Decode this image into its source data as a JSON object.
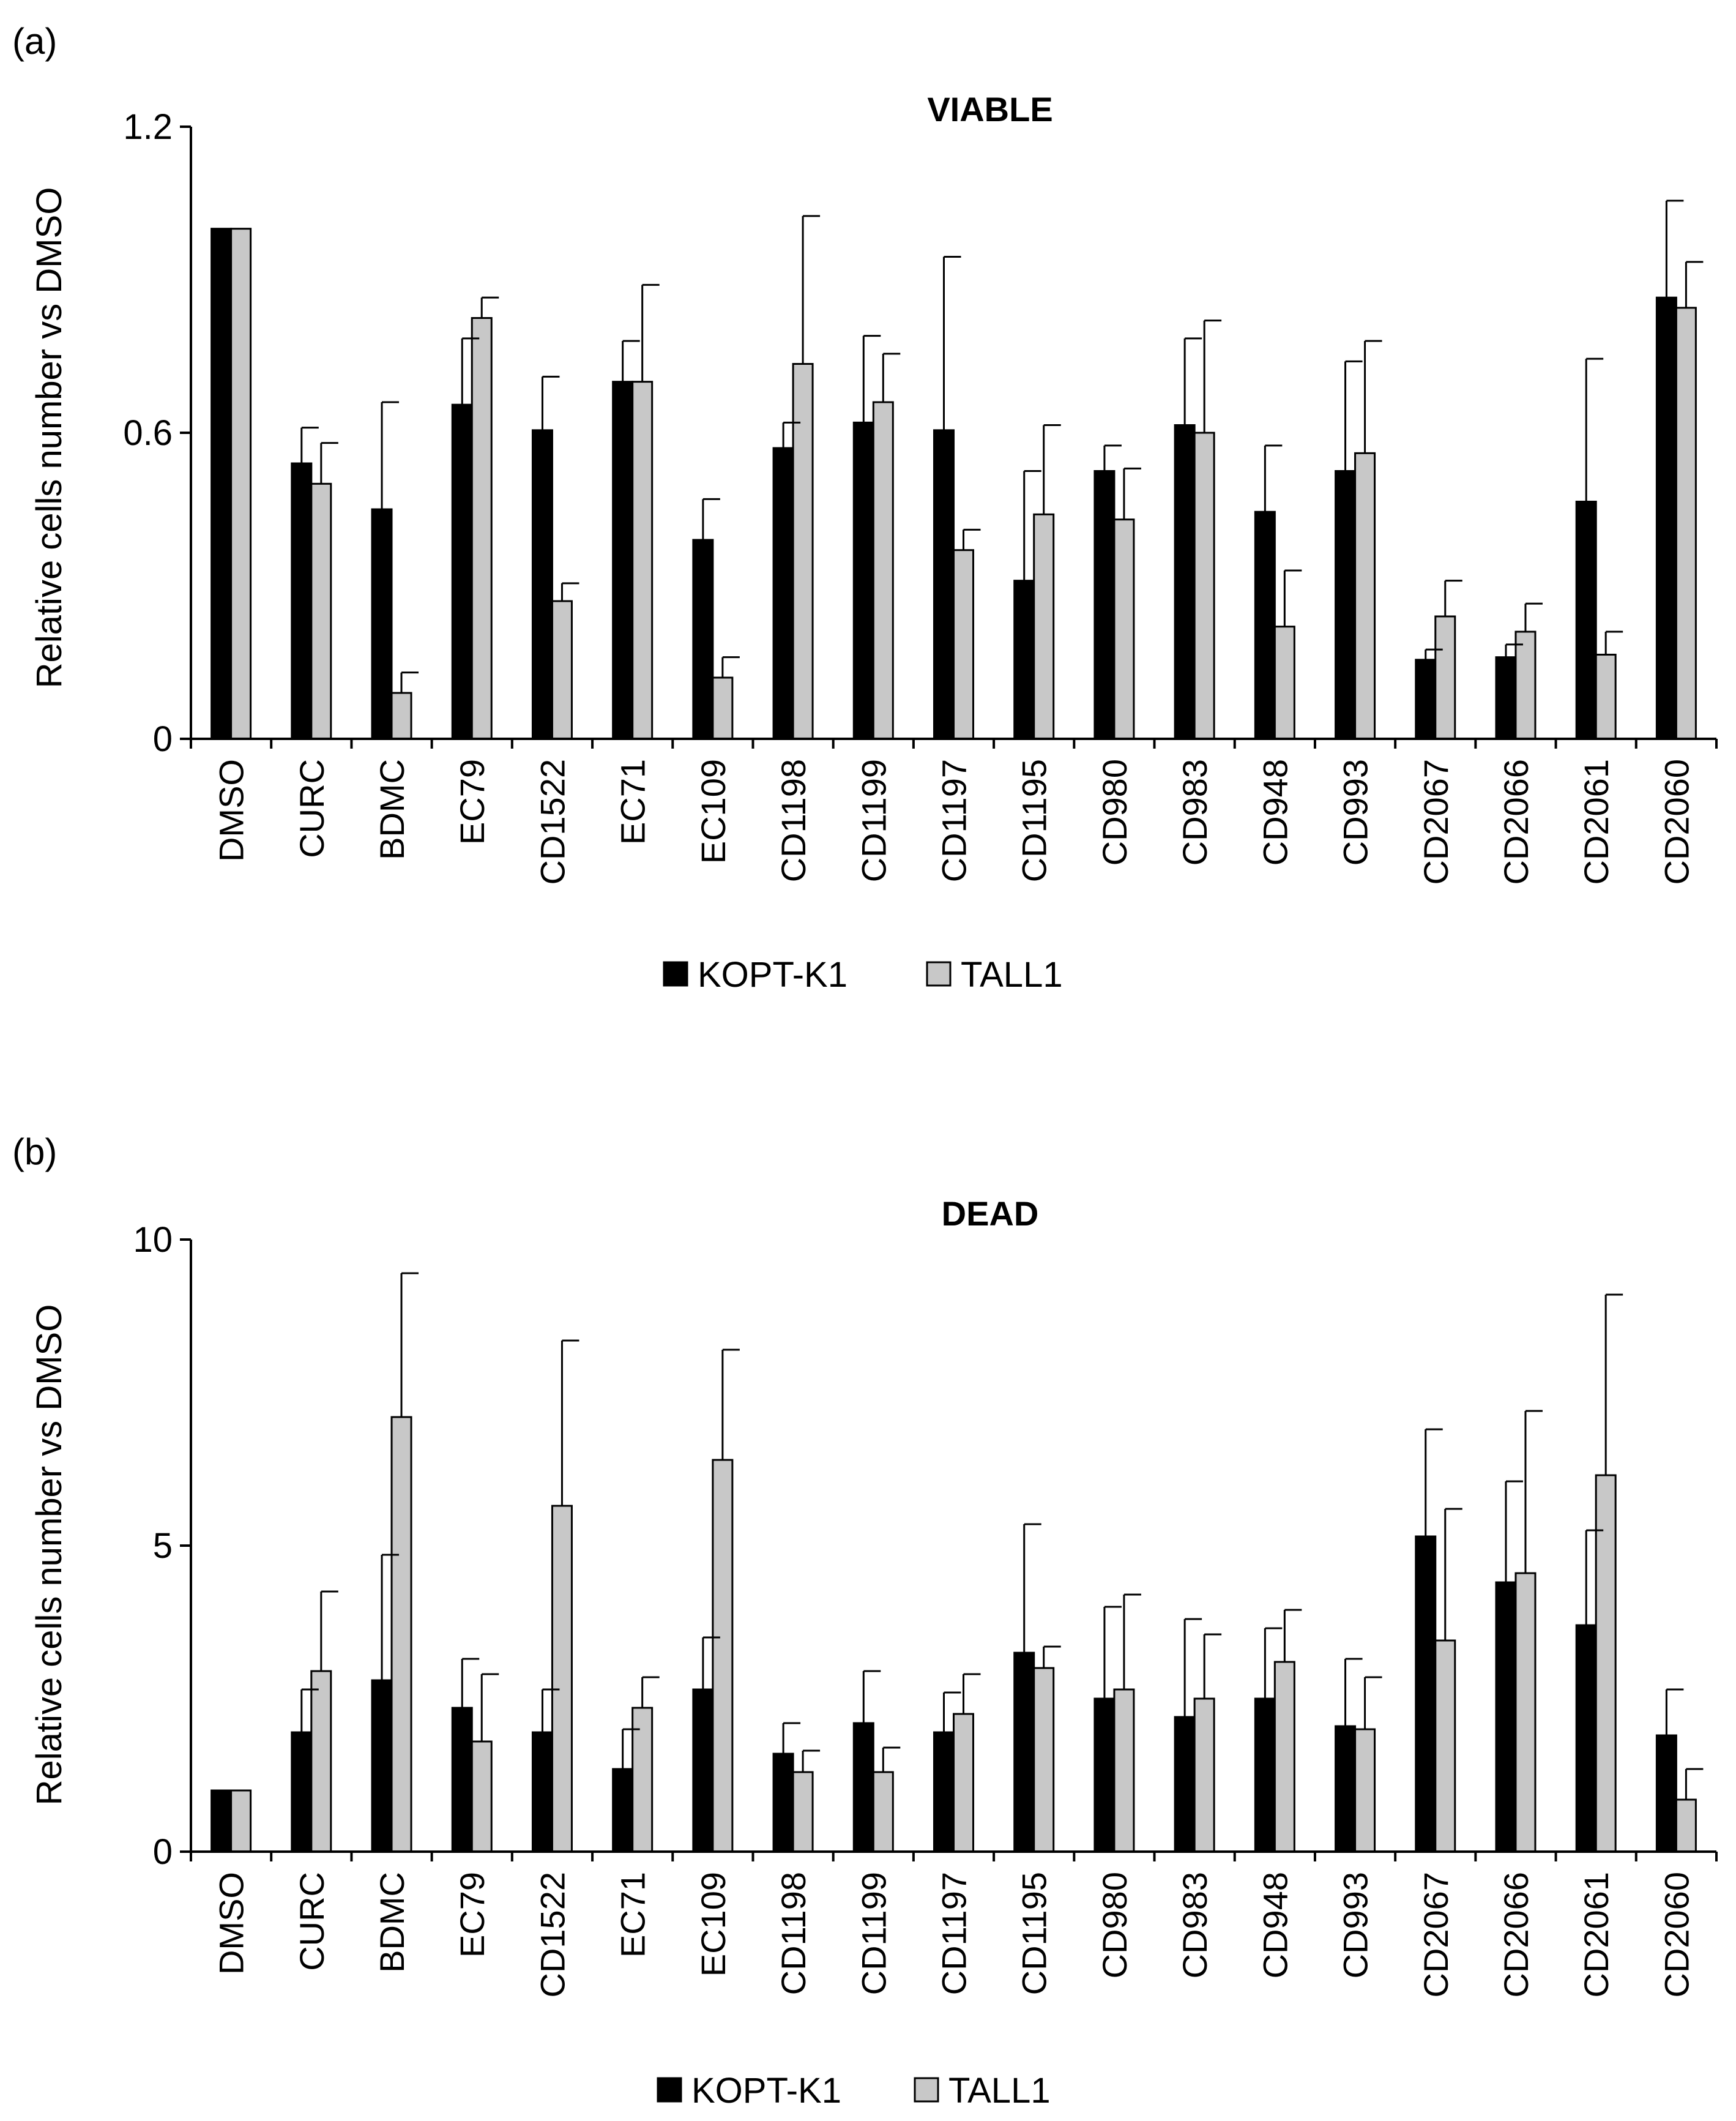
{
  "colors": {
    "kopt": "#000000",
    "tall": "#c8c8c8",
    "axis": "#000000"
  },
  "chart_data": [
    {
      "panel_label": "(a)",
      "type": "bar",
      "title": "VIABLE",
      "xlabel": "",
      "ylabel": "Relative cells number vs DMSO",
      "ylim": [
        0,
        1.2
      ],
      "yticks": [
        0,
        0.6,
        1.2
      ],
      "ytick_labels": [
        "0",
        "0.6",
        "1.2"
      ],
      "categories": [
        "DMSO",
        "CURC",
        "BDMC",
        "EC79",
        "CD1522",
        "EC71",
        "EC109",
        "CD1198",
        "CD1199",
        "CD1197",
        "CD1195",
        "CD980",
        "CD983",
        "CD948",
        "CD993",
        "CD2067",
        "CD2066",
        "CD2061",
        "CD2060"
      ],
      "series": [
        {
          "name": "KOPT-K1",
          "values": [
            1.0,
            0.54,
            0.45,
            0.655,
            0.605,
            0.7,
            0.39,
            0.57,
            0.62,
            0.605,
            0.31,
            0.525,
            0.615,
            0.445,
            0.525,
            0.155,
            0.16,
            0.465,
            0.865
          ],
          "errors": [
            0.0,
            0.07,
            0.21,
            0.13,
            0.105,
            0.08,
            0.08,
            0.05,
            0.17,
            0.34,
            0.215,
            0.05,
            0.17,
            0.13,
            0.215,
            0.02,
            0.025,
            0.28,
            0.19
          ]
        },
        {
          "name": "TALL1",
          "values": [
            1.0,
            0.5,
            0.09,
            0.825,
            0.27,
            0.7,
            0.12,
            0.735,
            0.66,
            0.37,
            0.44,
            0.43,
            0.6,
            0.22,
            0.56,
            0.24,
            0.21,
            0.165,
            0.845
          ],
          "errors": [
            0.0,
            0.08,
            0.04,
            0.04,
            0.035,
            0.19,
            0.04,
            0.29,
            0.095,
            0.04,
            0.175,
            0.1,
            0.22,
            0.11,
            0.22,
            0.07,
            0.055,
            0.045,
            0.09
          ]
        }
      ],
      "legend": [
        "KOPT-K1",
        "TALL1"
      ]
    },
    {
      "panel_label": "(b)",
      "type": "bar",
      "title": "DEAD",
      "xlabel": "",
      "ylabel": "Relative  cells number vs DMSO",
      "ylim": [
        0,
        10
      ],
      "yticks": [
        0,
        5,
        10
      ],
      "ytick_labels": [
        "0",
        "5",
        "10"
      ],
      "categories": [
        "DMSO",
        "CURC",
        "BDMC",
        "EC79",
        "CD1522",
        "EC71",
        "EC109",
        "CD1198",
        "CD1199",
        "CD1197",
        "CD1195",
        "CD980",
        "CD983",
        "CD948",
        "CD993",
        "CD2067",
        "CD2066",
        "CD2061",
        "CD2060"
      ],
      "series": [
        {
          "name": "KOPT-K1",
          "values": [
            1.0,
            1.95,
            2.8,
            2.35,
            1.95,
            1.35,
            2.65,
            1.6,
            2.1,
            1.95,
            3.25,
            2.5,
            2.2,
            2.5,
            2.05,
            5.15,
            4.4,
            3.7,
            1.9
          ],
          "errors": [
            0.0,
            0.7,
            2.05,
            0.8,
            0.7,
            0.65,
            0.85,
            0.5,
            0.85,
            0.65,
            2.1,
            1.5,
            1.6,
            1.15,
            1.1,
            1.75,
            1.65,
            1.55,
            0.75
          ]
        },
        {
          "name": "TALL1",
          "values": [
            1.0,
            2.95,
            7.1,
            1.8,
            5.65,
            2.35,
            6.4,
            1.3,
            1.3,
            2.25,
            3.0,
            2.65,
            2.5,
            3.1,
            2.0,
            3.45,
            4.55,
            6.15,
            0.85
          ],
          "errors": [
            0.0,
            1.3,
            2.35,
            1.1,
            2.7,
            0.5,
            1.8,
            0.35,
            0.4,
            0.65,
            0.35,
            1.55,
            1.05,
            0.85,
            0.85,
            2.15,
            2.65,
            2.95,
            0.5
          ]
        }
      ],
      "legend": [
        "KOPT-K1",
        "TALL1"
      ]
    }
  ]
}
